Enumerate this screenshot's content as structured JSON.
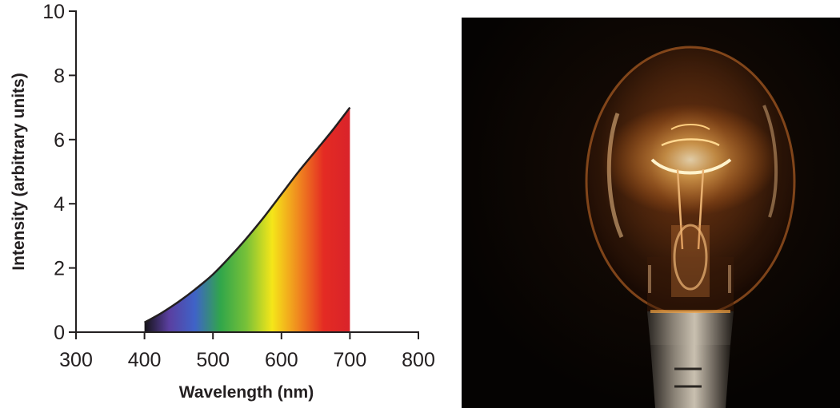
{
  "chart_data": {
    "type": "area",
    "title": "",
    "xlabel": "Wavelength (nm)",
    "ylabel": "Intensity (arbitrary units)",
    "xlim": [
      300,
      800
    ],
    "ylim": [
      0,
      10
    ],
    "x_ticks": [
      300,
      400,
      500,
      600,
      700,
      800
    ],
    "y_ticks": [
      0,
      2,
      4,
      6,
      8,
      10
    ],
    "grid": false,
    "fill": "visible spectrum gradient (violet to red)",
    "series": [
      {
        "x": [
          400,
          425,
          450,
          475,
          500,
          525,
          550,
          575,
          600,
          625,
          650,
          675,
          700
        ],
        "y": [
          0.3,
          0.6,
          0.95,
          1.35,
          1.8,
          2.35,
          2.95,
          3.6,
          4.3,
          5.0,
          5.65,
          6.3,
          7.0
        ]
      }
    ],
    "colors": {
      "axis": "#231f20",
      "curve": "#231f20",
      "spectrum": [
        "#111111",
        "#5a3fa0",
        "#3f63c8",
        "#31a64a",
        "#78c138",
        "#f5e619",
        "#f08a1f",
        "#e42b23",
        "#d9232a"
      ]
    }
  },
  "image": {
    "subject": "glowing-incandescent-light-bulb"
  }
}
